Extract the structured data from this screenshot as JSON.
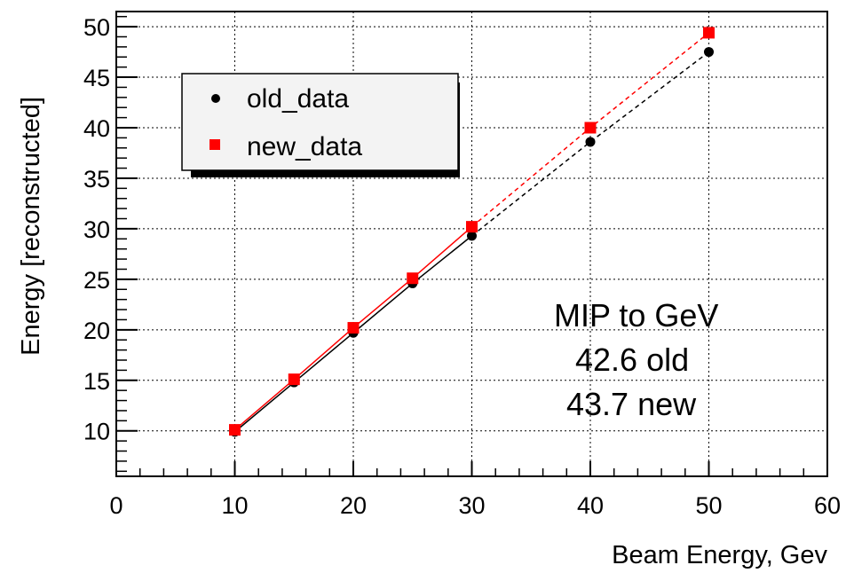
{
  "chart_data": {
    "type": "scatter",
    "xlabel": "Beam Energy, Gev",
    "ylabel": "Energy [reconstructed]",
    "xlim": [
      0,
      60
    ],
    "ylim": [
      5.5,
      51.5
    ],
    "x_ticks": [
      0,
      10,
      20,
      30,
      40,
      50,
      60
    ],
    "y_ticks": [
      10,
      15,
      20,
      25,
      30,
      35,
      40,
      45,
      50
    ],
    "grid": true,
    "legend_position": "top-left",
    "series": [
      {
        "name": "old_data",
        "marker": "circle",
        "color": "#000000",
        "x": [
          10,
          15,
          20,
          25,
          30,
          40,
          50
        ],
        "y": [
          9.9,
          14.8,
          19.7,
          24.6,
          29.3,
          38.6,
          47.5
        ]
      },
      {
        "name": "new_data",
        "marker": "square",
        "color": "#ff0000",
        "x": [
          10,
          15,
          20,
          25,
          30,
          40,
          50
        ],
        "y": [
          10.1,
          15.1,
          20.2,
          25.1,
          30.2,
          40.0,
          49.4
        ]
      }
    ],
    "annotations": [
      "MIP to GeV",
      "42.6 old",
      "43.7 new"
    ]
  }
}
